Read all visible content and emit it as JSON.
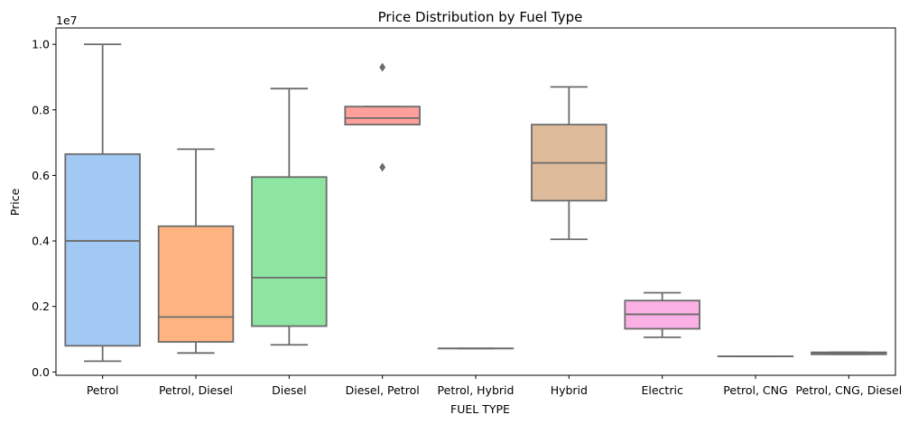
{
  "chart_data": {
    "type": "box",
    "title": "Price Distribution by Fuel Type",
    "xlabel": "FUEL TYPE",
    "ylabel": "Price",
    "y_scale_note": "1e7",
    "ylim": [
      -100000,
      10500000
    ],
    "yticks": [
      0.0,
      0.2,
      0.4,
      0.6,
      0.8,
      1.0
    ],
    "grid": false,
    "categories": [
      "Petrol",
      "Petrol, Diesel",
      "Diesel",
      "Diesel, Petrol",
      "Petrol, Hybrid",
      "Hybrid",
      "Electric",
      "Petrol, CNG",
      "Petrol, CNG, Diesel"
    ],
    "colors": [
      "#a1c9f4",
      "#ffb482",
      "#8de5a1",
      "#ff9f9b",
      "#d0bbff",
      "#debb9b",
      "#fab0e4",
      "#cfcfcf",
      "#fffea3"
    ],
    "boxes": [
      {
        "category": "Petrol",
        "whisker_low": 330000,
        "q1": 800000,
        "median": 4000000,
        "q3": 6650000,
        "whisker_high": 10000000,
        "outliers": []
      },
      {
        "category": "Petrol, Diesel",
        "whisker_low": 580000,
        "q1": 920000,
        "median": 1680000,
        "q3": 4450000,
        "whisker_high": 6800000,
        "outliers": []
      },
      {
        "category": "Diesel",
        "whisker_low": 830000,
        "q1": 1400000,
        "median": 2880000,
        "q3": 5950000,
        "whisker_high": 8650000,
        "outliers": []
      },
      {
        "category": "Diesel, Petrol",
        "whisker_low": 7550000,
        "q1": 7550000,
        "median": 7750000,
        "q3": 8100000,
        "whisker_high": 8100000,
        "outliers": [
          6250000,
          9300000
        ]
      },
      {
        "category": "Petrol, Hybrid",
        "whisker_low": 720000,
        "q1": 720000,
        "median": 720000,
        "q3": 720000,
        "whisker_high": 720000,
        "outliers": []
      },
      {
        "category": "Hybrid",
        "whisker_low": 4050000,
        "q1": 5230000,
        "median": 6380000,
        "q3": 7550000,
        "whisker_high": 8700000,
        "outliers": []
      },
      {
        "category": "Electric",
        "whisker_low": 1060000,
        "q1": 1320000,
        "median": 1760000,
        "q3": 2180000,
        "whisker_high": 2420000,
        "outliers": []
      },
      {
        "category": "Petrol, CNG",
        "whisker_low": 480000,
        "q1": 480000,
        "median": 480000,
        "q3": 480000,
        "whisker_high": 480000,
        "outliers": []
      },
      {
        "category": "Petrol, CNG, Diesel",
        "whisker_low": 540000,
        "q1": 540000,
        "median": 580000,
        "q3": 600000,
        "whisker_high": 600000,
        "outliers": []
      }
    ]
  }
}
